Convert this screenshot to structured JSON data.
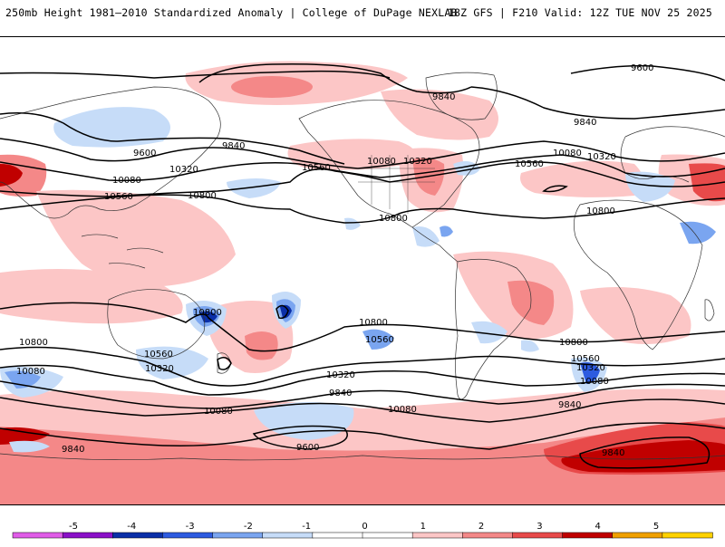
{
  "header": {
    "title": "250mb Height 1981–2010 Standardized Anomaly | College of DuPage NEXLAB",
    "run_info": "18Z GFS | F210 Valid: 12Z TUE NOV 25 2025"
  },
  "map": {
    "variable": "250mb Height",
    "contour_labels": [
      "9600",
      "9840",
      "9840",
      "9600",
      "9840",
      "10080",
      "10320",
      "10560",
      "10800",
      "10560",
      "10080",
      "10320",
      "10800",
      "10560",
      "10080",
      "10320",
      "10800",
      "10800",
      "10800",
      "10800",
      "10560",
      "10320",
      "10800",
      "10560",
      "10080",
      "10080",
      "10320",
      "9840",
      "10080",
      "9840",
      "10560",
      "10320",
      "10080",
      "9840",
      "9600",
      "9840"
    ]
  },
  "legend": {
    "ticks": [
      "-5",
      "-4",
      "-3",
      "-2",
      "-1",
      "0",
      "1",
      "2",
      "3",
      "4",
      "5"
    ],
    "colors": [
      "#e05ce8",
      "#8a10c8",
      "#0a2fa8",
      "#2d5be0",
      "#7aa5f0",
      "#c6dcf8",
      "#ffffff",
      "#ffffff",
      "#fcc6c6",
      "#f48888",
      "#e84a4a",
      "#c00000",
      "#f0a000",
      "#ffd200"
    ]
  }
}
